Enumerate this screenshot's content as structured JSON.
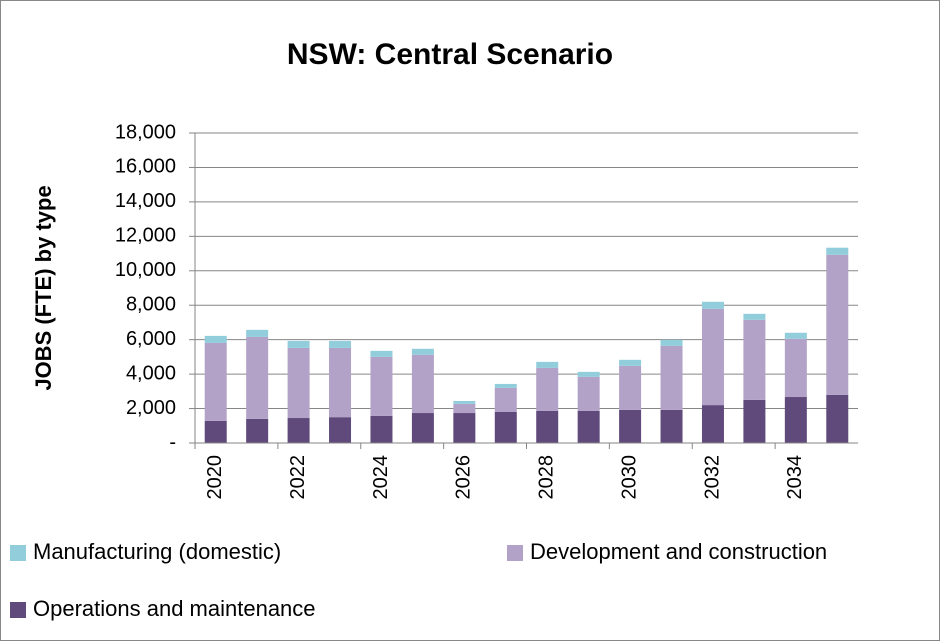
{
  "chart_data": {
    "type": "stacked-bar",
    "title": "NSW: Central Scenario",
    "y_label": "JOBS (FTE) by type",
    "categories": [
      "2020",
      null,
      "2022",
      null,
      "2024",
      null,
      "2026",
      null,
      "2028",
      null,
      "2030",
      null,
      "2032",
      null,
      "2034",
      null
    ],
    "series": [
      {
        "name": "Operations and maintenance",
        "color": "#604a7b",
        "values": [
          1280,
          1400,
          1450,
          1500,
          1570,
          1740,
          1740,
          1800,
          1860,
          1860,
          1920,
          1920,
          2200,
          2500,
          2670,
          2790
        ]
      },
      {
        "name": "Development and construction",
        "color": "#b3a2c7",
        "values": [
          4530,
          4760,
          4070,
          4020,
          3430,
          3380,
          530,
          1400,
          2500,
          1980,
          2560,
          3720,
          5590,
          4650,
          3380,
          8140
        ]
      },
      {
        "name": "Manufacturing (domestic)",
        "color": "#92cddc",
        "values": [
          410,
          410,
          410,
          410,
          350,
          350,
          170,
          230,
          350,
          290,
          350,
          350,
          410,
          350,
          350,
          410
        ]
      }
    ],
    "ylim": [
      0,
      18000
    ],
    "yticks": [
      {
        "value": 0,
        "label": "-"
      },
      {
        "value": 2000,
        "label": "2,000"
      },
      {
        "value": 4000,
        "label": "4,000"
      },
      {
        "value": 6000,
        "label": "6,000"
      },
      {
        "value": 8000,
        "label": "8,000"
      },
      {
        "value": 10000,
        "label": "10,000"
      },
      {
        "value": 12000,
        "label": "12,000"
      },
      {
        "value": 14000,
        "label": "14,000"
      },
      {
        "value": 16000,
        "label": "16,000"
      },
      {
        "value": 18000,
        "label": "18,000"
      }
    ],
    "grid": true
  }
}
